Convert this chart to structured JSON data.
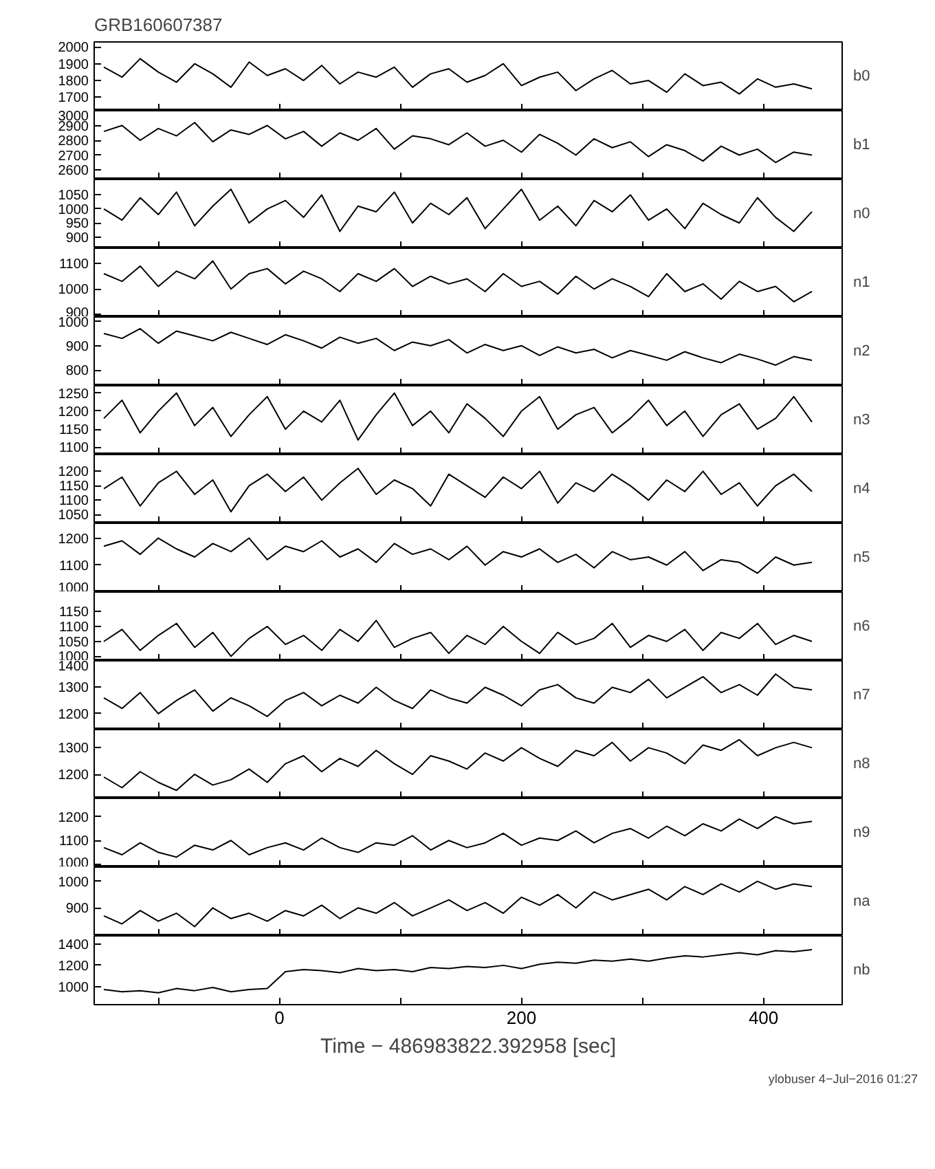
{
  "chart_data": [
    {
      "type": "line",
      "title": "GRB160607387",
      "tick_labels": "y",
      "xlim": [
        -153,
        465
      ],
      "xticks": [
        {
          "value": -100,
          "label": null
        },
        0,
        {
          "value": 100,
          "label": null
        },
        200,
        {
          "value": 300,
          "label": null
        },
        400
      ],
      "ylim": [
        1620,
        2030
      ],
      "yticks": [
        1700,
        1800,
        1900,
        2000
      ],
      "x": [
        -145,
        -130,
        -115,
        -100,
        -85,
        -70,
        -55,
        -40,
        -25,
        -10,
        5,
        20,
        35,
        50,
        65,
        80,
        95,
        110,
        125,
        140,
        155,
        170,
        185,
        200,
        215,
        230,
        245,
        260,
        275,
        290,
        305,
        320,
        335,
        350,
        365,
        380,
        395,
        410,
        425,
        440
      ],
      "series": [
        {
          "name": "b0",
          "color": "#000000",
          "values": [
            1880,
            1820,
            1930,
            1850,
            1790,
            1900,
            1840,
            1760,
            1910,
            1830,
            1870,
            1800,
            1890,
            1780,
            1850,
            1820,
            1880,
            1760,
            1840,
            1870,
            1790,
            1830,
            1900,
            1770,
            1820,
            1850,
            1740,
            1810,
            1860,
            1780,
            1800,
            1730,
            1840,
            1770,
            1790,
            1720,
            1810,
            1760,
            1780,
            1750
          ]
        }
      ]
    },
    {
      "type": "line",
      "tick_labels": "y",
      "xlim": [
        -153,
        465
      ],
      "xticks": [
        {
          "value": -100,
          "label": null
        },
        0,
        {
          "value": 100,
          "label": null
        },
        200,
        {
          "value": 300,
          "label": null
        },
        400
      ],
      "ylim": [
        2535,
        3000
      ],
      "yticks": [
        2600,
        2700,
        2800,
        2900,
        3000
      ],
      "x": [
        -145,
        -130,
        -115,
        -100,
        -85,
        -70,
        -55,
        -40,
        -25,
        -10,
        5,
        20,
        35,
        50,
        65,
        80,
        95,
        110,
        125,
        140,
        155,
        170,
        185,
        200,
        215,
        230,
        245,
        260,
        275,
        290,
        305,
        320,
        335,
        350,
        365,
        380,
        395,
        410,
        425,
        440
      ],
      "series": [
        {
          "name": "b1",
          "color": "#000000",
          "values": [
            2860,
            2900,
            2800,
            2880,
            2830,
            2920,
            2790,
            2870,
            2840,
            2900,
            2810,
            2860,
            2760,
            2850,
            2800,
            2880,
            2740,
            2830,
            2810,
            2770,
            2850,
            2760,
            2800,
            2720,
            2840,
            2780,
            2700,
            2810,
            2750,
            2790,
            2690,
            2770,
            2730,
            2660,
            2760,
            2700,
            2740,
            2650,
            2720,
            2700
          ]
        }
      ]
    },
    {
      "type": "line",
      "tick_labels": "y",
      "xlim": [
        -153,
        465
      ],
      "xticks": [
        {
          "value": -100,
          "label": null
        },
        0,
        {
          "value": 100,
          "label": null
        },
        200,
        {
          "value": 300,
          "label": null
        },
        400
      ],
      "ylim": [
        860,
        1105
      ],
      "yticks": [
        900,
        950,
        1000,
        1050
      ],
      "x": [
        -145,
        -130,
        -115,
        -100,
        -85,
        -70,
        -55,
        -40,
        -25,
        -10,
        5,
        20,
        35,
        50,
        65,
        80,
        95,
        110,
        125,
        140,
        155,
        170,
        185,
        200,
        215,
        230,
        245,
        260,
        275,
        290,
        305,
        320,
        335,
        350,
        365,
        380,
        395,
        410,
        425,
        440
      ],
      "series": [
        {
          "name": "n0",
          "color": "#000000",
          "values": [
            1000,
            960,
            1040,
            980,
            1060,
            940,
            1010,
            1070,
            950,
            1000,
            1030,
            970,
            1050,
            920,
            1010,
            990,
            1060,
            950,
            1020,
            980,
            1040,
            930,
            1000,
            1070,
            960,
            1010,
            940,
            1030,
            990,
            1050,
            960,
            1000,
            930,
            1020,
            980,
            950,
            1040,
            970,
            920,
            990
          ]
        }
      ]
    },
    {
      "type": "line",
      "tick_labels": "y",
      "xlim": [
        -153,
        465
      ],
      "xticks": [
        {
          "value": -100,
          "label": null
        },
        0,
        {
          "value": 100,
          "label": null
        },
        200,
        {
          "value": 300,
          "label": null
        },
        400
      ],
      "ylim": [
        890,
        1160
      ],
      "yticks": [
        900,
        1000,
        1100
      ],
      "x": [
        -145,
        -130,
        -115,
        -100,
        -85,
        -70,
        -55,
        -40,
        -25,
        -10,
        5,
        20,
        35,
        50,
        65,
        80,
        95,
        110,
        125,
        140,
        155,
        170,
        185,
        200,
        215,
        230,
        245,
        260,
        275,
        290,
        305,
        320,
        335,
        350,
        365,
        380,
        395,
        410,
        425,
        440
      ],
      "series": [
        {
          "name": "n1",
          "color": "#000000",
          "values": [
            1060,
            1030,
            1090,
            1010,
            1070,
            1040,
            1110,
            1000,
            1060,
            1080,
            1020,
            1070,
            1040,
            990,
            1060,
            1030,
            1080,
            1010,
            1050,
            1020,
            1040,
            990,
            1060,
            1010,
            1030,
            980,
            1050,
            1000,
            1040,
            1010,
            970,
            1060,
            990,
            1020,
            960,
            1030,
            990,
            1010,
            950,
            990
          ]
        }
      ]
    },
    {
      "type": "line",
      "tick_labels": "y",
      "xlim": [
        -153,
        465
      ],
      "xticks": [
        {
          "value": -100,
          "label": null
        },
        0,
        {
          "value": 100,
          "label": null
        },
        200,
        {
          "value": 300,
          "label": null
        },
        400
      ],
      "ylim": [
        735,
        1018
      ],
      "yticks": [
        800,
        900,
        1000
      ],
      "x": [
        -145,
        -130,
        -115,
        -100,
        -85,
        -70,
        -55,
        -40,
        -25,
        -10,
        5,
        20,
        35,
        50,
        65,
        80,
        95,
        110,
        125,
        140,
        155,
        170,
        185,
        200,
        215,
        230,
        245,
        260,
        275,
        290,
        305,
        320,
        335,
        350,
        365,
        380,
        395,
        410,
        425,
        440
      ],
      "series": [
        {
          "name": "n2",
          "color": "#000000",
          "values": [
            950,
            930,
            970,
            910,
            960,
            940,
            920,
            955,
            930,
            905,
            945,
            920,
            890,
            935,
            910,
            930,
            880,
            915,
            900,
            925,
            870,
            905,
            880,
            900,
            860,
            895,
            870,
            885,
            850,
            880,
            860,
            840,
            875,
            850,
            830,
            865,
            845,
            820,
            855,
            840
          ]
        }
      ]
    },
    {
      "type": "line",
      "tick_labels": "y",
      "xlim": [
        -153,
        465
      ],
      "xticks": [
        {
          "value": -100,
          "label": null
        },
        0,
        {
          "value": 100,
          "label": null
        },
        200,
        {
          "value": 300,
          "label": null
        },
        400
      ],
      "ylim": [
        1080,
        1270
      ],
      "yticks": [
        1100,
        1150,
        1200,
        1250
      ],
      "x": [
        -145,
        -130,
        -115,
        -100,
        -85,
        -70,
        -55,
        -40,
        -25,
        -10,
        5,
        20,
        35,
        50,
        65,
        80,
        95,
        110,
        125,
        140,
        155,
        170,
        185,
        200,
        215,
        230,
        245,
        260,
        275,
        290,
        305,
        320,
        335,
        350,
        365,
        380,
        395,
        410,
        425,
        440
      ],
      "series": [
        {
          "name": "n3",
          "color": "#000000",
          "values": [
            1180,
            1230,
            1140,
            1200,
            1250,
            1160,
            1210,
            1130,
            1190,
            1240,
            1150,
            1200,
            1170,
            1230,
            1120,
            1190,
            1250,
            1160,
            1200,
            1140,
            1220,
            1180,
            1130,
            1200,
            1240,
            1150,
            1190,
            1210,
            1140,
            1180,
            1230,
            1160,
            1200,
            1130,
            1190,
            1220,
            1150,
            1180,
            1240,
            1170
          ]
        }
      ]
    },
    {
      "type": "line",
      "tick_labels": "y",
      "xlim": [
        -153,
        465
      ],
      "xticks": [
        {
          "value": -100,
          "label": null
        },
        0,
        {
          "value": 100,
          "label": null
        },
        200,
        {
          "value": 300,
          "label": null
        },
        400
      ],
      "ylim": [
        1020,
        1258
      ],
      "yticks": [
        1050,
        1100,
        1150,
        1200
      ],
      "x": [
        -145,
        -130,
        -115,
        -100,
        -85,
        -70,
        -55,
        -40,
        -25,
        -10,
        5,
        20,
        35,
        50,
        65,
        80,
        95,
        110,
        125,
        140,
        155,
        170,
        185,
        200,
        215,
        230,
        245,
        260,
        275,
        290,
        305,
        320,
        335,
        350,
        365,
        380,
        395,
        410,
        425,
        440
      ],
      "series": [
        {
          "name": "n4",
          "color": "#000000",
          "values": [
            1140,
            1180,
            1080,
            1160,
            1200,
            1120,
            1170,
            1060,
            1150,
            1190,
            1130,
            1180,
            1100,
            1160,
            1210,
            1120,
            1170,
            1140,
            1080,
            1190,
            1150,
            1110,
            1180,
            1140,
            1200,
            1090,
            1160,
            1130,
            1190,
            1150,
            1100,
            1170,
            1130,
            1200,
            1120,
            1160,
            1080,
            1150,
            1190,
            1130
          ]
        }
      ]
    },
    {
      "type": "line",
      "tick_labels": "y",
      "xlim": [
        -153,
        465
      ],
      "xticks": [
        {
          "value": -100,
          "label": null
        },
        0,
        {
          "value": 100,
          "label": null
        },
        200,
        {
          "value": 300,
          "label": null
        },
        400
      ],
      "ylim": [
        1000,
        1255
      ],
      "yticks": [
        1000,
        1100,
        1200
      ],
      "x": [
        -145,
        -130,
        -115,
        -100,
        -85,
        -70,
        -55,
        -40,
        -25,
        -10,
        5,
        20,
        35,
        50,
        65,
        80,
        95,
        110,
        125,
        140,
        155,
        170,
        185,
        200,
        215,
        230,
        245,
        260,
        275,
        290,
        305,
        320,
        335,
        350,
        365,
        380,
        395,
        410,
        425,
        440
      ],
      "series": [
        {
          "name": "n5",
          "color": "#000000",
          "values": [
            1170,
            1190,
            1140,
            1200,
            1160,
            1130,
            1180,
            1150,
            1200,
            1120,
            1170,
            1150,
            1190,
            1130,
            1160,
            1110,
            1180,
            1140,
            1160,
            1120,
            1170,
            1100,
            1150,
            1130,
            1160,
            1110,
            1140,
            1090,
            1150,
            1120,
            1130,
            1100,
            1150,
            1080,
            1120,
            1110,
            1070,
            1130,
            1100,
            1110
          ]
        }
      ]
    },
    {
      "type": "line",
      "tick_labels": "y",
      "xlim": [
        -153,
        465
      ],
      "xticks": [
        {
          "value": -100,
          "label": null
        },
        0,
        {
          "value": 100,
          "label": null
        },
        200,
        {
          "value": 300,
          "label": null
        },
        400
      ],
      "ylim": [
        985,
        1215
      ],
      "yticks": [
        1000,
        1050,
        1100,
        1150
      ],
      "x": [
        -145,
        -130,
        -115,
        -100,
        -85,
        -70,
        -55,
        -40,
        -25,
        -10,
        5,
        20,
        35,
        50,
        65,
        80,
        95,
        110,
        125,
        140,
        155,
        170,
        185,
        200,
        215,
        230,
        245,
        260,
        275,
        290,
        305,
        320,
        335,
        350,
        365,
        380,
        395,
        410,
        425,
        440
      ],
      "series": [
        {
          "name": "n6",
          "color": "#000000",
          "values": [
            1050,
            1090,
            1020,
            1070,
            1110,
            1030,
            1080,
            1000,
            1060,
            1100,
            1040,
            1070,
            1020,
            1090,
            1050,
            1120,
            1030,
            1060,
            1080,
            1010,
            1070,
            1040,
            1100,
            1050,
            1010,
            1080,
            1040,
            1060,
            1110,
            1030,
            1070,
            1050,
            1090,
            1020,
            1080,
            1060,
            1110,
            1040,
            1070,
            1050
          ]
        }
      ]
    },
    {
      "type": "line",
      "tick_labels": "y",
      "xlim": [
        -153,
        465
      ],
      "xticks": [
        {
          "value": -100,
          "label": null
        },
        0,
        {
          "value": 100,
          "label": null
        },
        200,
        {
          "value": 300,
          "label": null
        },
        400
      ],
      "ylim": [
        1140,
        1400
      ],
      "yticks": [
        1200,
        1300,
        1400
      ],
      "x": [
        -145,
        -130,
        -115,
        -100,
        -85,
        -70,
        -55,
        -40,
        -25,
        -10,
        5,
        20,
        35,
        50,
        65,
        80,
        95,
        110,
        125,
        140,
        155,
        170,
        185,
        200,
        215,
        230,
        245,
        260,
        275,
        290,
        305,
        320,
        335,
        350,
        365,
        380,
        395,
        410,
        425,
        440
      ],
      "series": [
        {
          "name": "n7",
          "color": "#000000",
          "values": [
            1260,
            1220,
            1280,
            1200,
            1250,
            1290,
            1210,
            1260,
            1230,
            1190,
            1250,
            1280,
            1230,
            1270,
            1240,
            1300,
            1250,
            1220,
            1290,
            1260,
            1240,
            1300,
            1270,
            1230,
            1290,
            1310,
            1260,
            1240,
            1300,
            1280,
            1330,
            1260,
            1300,
            1340,
            1280,
            1310,
            1270,
            1350,
            1300,
            1290
          ]
        }
      ]
    },
    {
      "type": "line",
      "tick_labels": "y",
      "xlim": [
        -153,
        465
      ],
      "xticks": [
        {
          "value": -100,
          "label": null
        },
        0,
        {
          "value": 100,
          "label": null
        },
        200,
        {
          "value": 300,
          "label": null
        },
        400
      ],
      "ylim": [
        1110,
        1368
      ],
      "yticks": [
        1200,
        1300
      ],
      "x": [
        -145,
        -130,
        -115,
        -100,
        -85,
        -70,
        -55,
        -40,
        -25,
        -10,
        5,
        20,
        35,
        50,
        65,
        80,
        95,
        110,
        125,
        140,
        155,
        170,
        185,
        200,
        215,
        230,
        245,
        260,
        275,
        290,
        305,
        320,
        335,
        350,
        365,
        380,
        395,
        410,
        425,
        440
      ],
      "series": [
        {
          "name": "n8",
          "color": "#000000",
          "values": [
            1190,
            1150,
            1210,
            1170,
            1140,
            1200,
            1160,
            1180,
            1220,
            1170,
            1240,
            1270,
            1210,
            1260,
            1230,
            1290,
            1240,
            1200,
            1270,
            1250,
            1220,
            1280,
            1250,
            1300,
            1260,
            1230,
            1290,
            1270,
            1320,
            1250,
            1300,
            1280,
            1240,
            1310,
            1290,
            1330,
            1270,
            1300,
            1320,
            1300
          ]
        }
      ]
    },
    {
      "type": "line",
      "tick_labels": "y",
      "xlim": [
        -153,
        465
      ],
      "xticks": [
        {
          "value": -100,
          "label": null
        },
        0,
        {
          "value": 100,
          "label": null
        },
        200,
        {
          "value": 300,
          "label": null
        },
        400
      ],
      "ylim": [
        988,
        1277
      ],
      "yticks": [
        1000,
        1100,
        1200
      ],
      "x": [
        -145,
        -130,
        -115,
        -100,
        -85,
        -70,
        -55,
        -40,
        -25,
        -10,
        5,
        20,
        35,
        50,
        65,
        80,
        95,
        110,
        125,
        140,
        155,
        170,
        185,
        200,
        215,
        230,
        245,
        260,
        275,
        290,
        305,
        320,
        335,
        350,
        365,
        380,
        395,
        410,
        425,
        440
      ],
      "series": [
        {
          "name": "n9",
          "color": "#000000",
          "values": [
            1070,
            1040,
            1090,
            1050,
            1030,
            1080,
            1060,
            1100,
            1040,
            1070,
            1090,
            1060,
            1110,
            1070,
            1050,
            1090,
            1080,
            1120,
            1060,
            1100,
            1070,
            1090,
            1130,
            1080,
            1110,
            1100,
            1140,
            1090,
            1130,
            1150,
            1110,
            1160,
            1120,
            1170,
            1140,
            1190,
            1150,
            1200,
            1170,
            1180
          ]
        }
      ]
    },
    {
      "type": "line",
      "tick_labels": "y",
      "xlim": [
        -153,
        465
      ],
      "xticks": [
        {
          "value": -100,
          "label": null
        },
        0,
        {
          "value": 100,
          "label": null
        },
        200,
        {
          "value": 300,
          "label": null
        },
        400
      ],
      "ylim": [
        795,
        1053
      ],
      "yticks": [
        900,
        1000
      ],
      "x": [
        -145,
        -130,
        -115,
        -100,
        -85,
        -70,
        -55,
        -40,
        -25,
        -10,
        5,
        20,
        35,
        50,
        65,
        80,
        95,
        110,
        125,
        140,
        155,
        170,
        185,
        200,
        215,
        230,
        245,
        260,
        275,
        290,
        305,
        320,
        335,
        350,
        365,
        380,
        395,
        410,
        425,
        440
      ],
      "series": [
        {
          "name": "na",
          "color": "#000000",
          "values": [
            870,
            840,
            890,
            850,
            880,
            830,
            900,
            860,
            880,
            850,
            890,
            870,
            910,
            860,
            900,
            880,
            920,
            870,
            900,
            930,
            890,
            920,
            880,
            940,
            910,
            950,
            900,
            960,
            930,
            950,
            970,
            930,
            980,
            950,
            990,
            960,
            1000,
            970,
            990,
            980
          ]
        }
      ]
    },
    {
      "type": "line",
      "xlabel": "Time − 486983822.392958 [sec]",
      "annotations": [
        "ylobuser   4−Jul−2016 01:27"
      ],
      "xlim": [
        -153,
        465
      ],
      "xticks": [
        {
          "value": -100,
          "label": null
        },
        0,
        {
          "value": 100,
          "label": null
        },
        200,
        {
          "value": 300,
          "label": null
        },
        400
      ],
      "ylim": [
        827,
        1480
      ],
      "yticks": [
        1000,
        1200,
        1400
      ],
      "x": [
        -145,
        -130,
        -115,
        -100,
        -85,
        -70,
        -55,
        -40,
        -25,
        -10,
        5,
        20,
        35,
        50,
        65,
        80,
        95,
        110,
        125,
        140,
        155,
        170,
        185,
        200,
        215,
        230,
        245,
        260,
        275,
        290,
        305,
        320,
        335,
        350,
        365,
        380,
        395,
        410,
        425,
        440
      ],
      "series": [
        {
          "name": "nb",
          "color": "#000000",
          "values": [
            970,
            950,
            960,
            940,
            980,
            960,
            990,
            950,
            970,
            980,
            1140,
            1160,
            1150,
            1130,
            1170,
            1150,
            1160,
            1140,
            1180,
            1170,
            1190,
            1180,
            1200,
            1170,
            1210,
            1230,
            1220,
            1250,
            1240,
            1260,
            1240,
            1270,
            1290,
            1280,
            1300,
            1320,
            1300,
            1340,
            1330,
            1350
          ]
        }
      ]
    }
  ]
}
